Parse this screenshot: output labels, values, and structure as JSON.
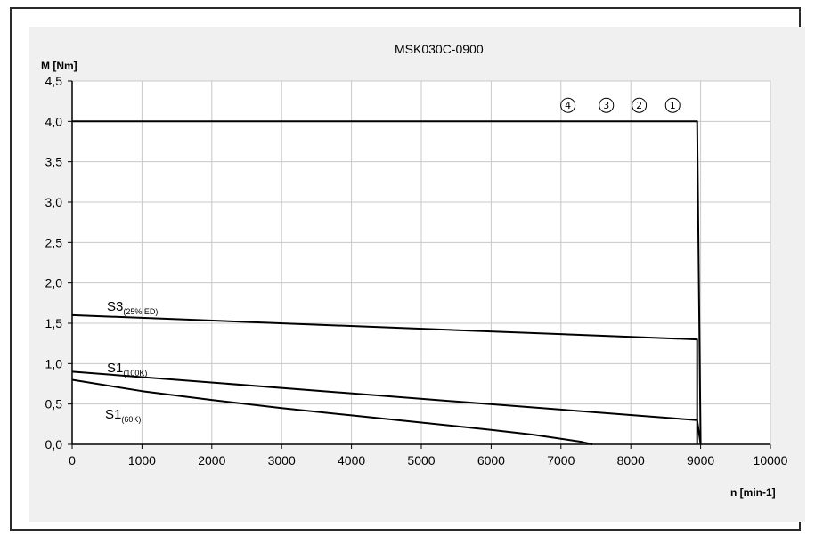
{
  "chart_data": {
    "type": "line",
    "title": "MSK030C-0900",
    "ylabel": "M [Nm]",
    "xlabel": "n [min-1]",
    "xlim": [
      0,
      10000
    ],
    "ylim": [
      0,
      4.5
    ],
    "grid": true,
    "x_tick_labels": [
      "0",
      "1000",
      "2000",
      "3000",
      "4000",
      "5000",
      "6000",
      "7000",
      "8000",
      "9000",
      "10000"
    ],
    "y_tick_labels": [
      "0,0",
      "0,5",
      "1,0",
      "1,5",
      "2,0",
      "2,5",
      "3,0",
      "3,5",
      "4,0",
      "4,5"
    ],
    "series": [
      {
        "id": "peak",
        "points": [
          [
            0,
            4.0
          ],
          [
            8950,
            4.0
          ],
          [
            9000,
            0.0
          ]
        ]
      },
      {
        "id": "s3",
        "label_main": "S3",
        "label_sub": "(25% ED)",
        "points": [
          [
            0,
            1.6
          ],
          [
            8950,
            1.3
          ],
          [
            8950,
            0.0
          ]
        ]
      },
      {
        "id": "s1_100k",
        "label_main": "S1",
        "label_sub": "(100K)",
        "points": [
          [
            0,
            0.9
          ],
          [
            8950,
            0.3
          ],
          [
            9000,
            0.0
          ]
        ]
      },
      {
        "id": "s1_60k",
        "label_main": "S1",
        "label_sub": "(60K)",
        "points": [
          [
            0,
            0.8
          ],
          [
            1000,
            0.66
          ],
          [
            2000,
            0.55
          ],
          [
            3000,
            0.45
          ],
          [
            4000,
            0.36
          ],
          [
            5000,
            0.27
          ],
          [
            6000,
            0.18
          ],
          [
            6600,
            0.12
          ],
          [
            7000,
            0.07
          ],
          [
            7300,
            0.03
          ],
          [
            7450,
            0.0
          ]
        ]
      }
    ],
    "markers": [
      {
        "text": "4",
        "x": 7100,
        "y": 4.2
      },
      {
        "text": "3",
        "x": 7650,
        "y": 4.2
      },
      {
        "text": "2",
        "x": 8120,
        "y": 4.2
      },
      {
        "text": "1",
        "x": 8600,
        "y": 4.2
      }
    ]
  }
}
